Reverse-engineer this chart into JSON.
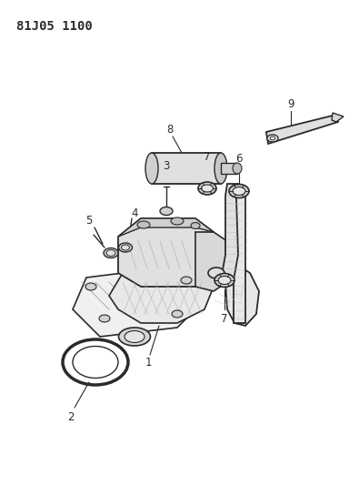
{
  "title_code": "81J05 1100",
  "bg_color": "#ffffff",
  "lc": "#2a2a2a",
  "figsize": [
    3.95,
    5.33
  ],
  "dpi": 100
}
